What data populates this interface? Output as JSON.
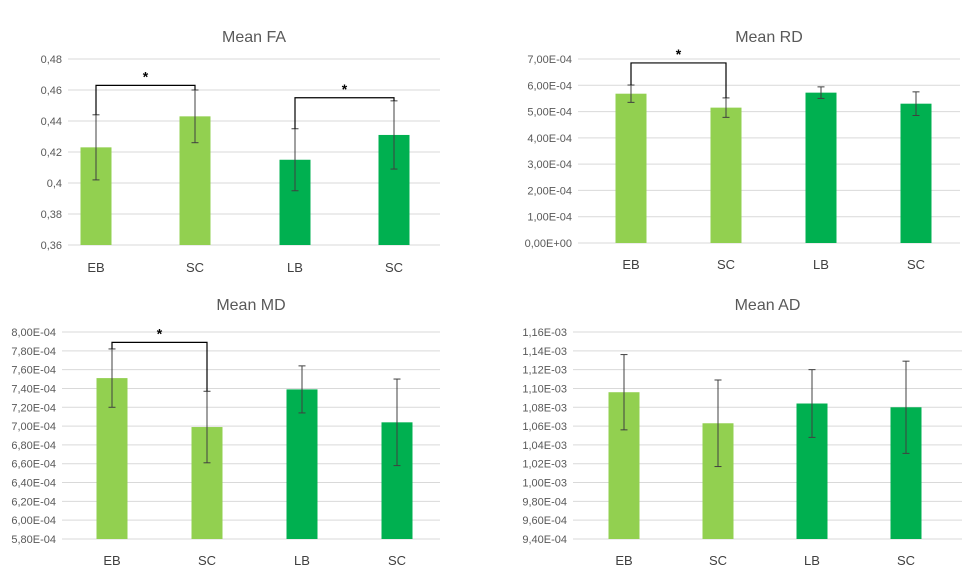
{
  "colors": {
    "light": "#92d050",
    "dark": "#00b050"
  },
  "chart_data": [
    {
      "type": "bar",
      "title": "Mean FA",
      "categories": [
        "EB",
        "SC",
        "LB",
        "SC"
      ],
      "values": [
        0.423,
        0.443,
        0.415,
        0.431
      ],
      "errors": [
        0.021,
        0.017,
        0.02,
        0.022
      ],
      "ylim": [
        0.36,
        0.48
      ],
      "yticks": [
        0.36,
        0.38,
        0.4,
        0.42,
        0.44,
        0.46,
        0.48
      ],
      "ytick_labels": [
        "0,36",
        "0,38",
        "0,4",
        "0,42",
        "0,44",
        "0,46",
        "0,48"
      ],
      "series_color": [
        "light",
        "light",
        "dark",
        "dark"
      ],
      "annotations": [
        {
          "from": 0,
          "to": 1,
          "level": 0.463,
          "text": "*"
        },
        {
          "from": 2,
          "to": 3,
          "level": 0.455,
          "text": "*"
        }
      ]
    },
    {
      "type": "bar",
      "title": "Mean RD",
      "categories": [
        "EB",
        "SC",
        "LB",
        "SC"
      ],
      "values": [
        0.000568,
        0.000515,
        0.000572,
        0.00053
      ],
      "errors": [
        3.3e-05,
        3.7e-05,
        2.2e-05,
        4.5e-05
      ],
      "ylim": [
        0,
        0.0007
      ],
      "yticks": [
        0,
        0.0001,
        0.0002,
        0.0003,
        0.0004,
        0.0005,
        0.0006,
        0.0007
      ],
      "ytick_labels": [
        "0,00E+00",
        "1,00E-04",
        "2,00E-04",
        "3,00E-04",
        "4,00E-04",
        "5,00E-04",
        "6,00E-04",
        "7,00E-04"
      ],
      "series_color": [
        "light",
        "light",
        "dark",
        "dark"
      ],
      "annotations": [
        {
          "from": 0,
          "to": 1,
          "level": 0.000685,
          "text": "*"
        }
      ]
    },
    {
      "type": "bar",
      "title": "Mean MD",
      "categories": [
        "EB",
        "SC",
        "LB",
        "SC"
      ],
      "values": [
        0.000751,
        0.000699,
        0.000739,
        0.000704
      ],
      "errors": [
        3.1e-05,
        3.8e-05,
        2.5e-05,
        4.6e-05
      ],
      "ylim": [
        0.00058,
        0.0008
      ],
      "yticks": [
        0.00058,
        0.0006,
        0.00062,
        0.00064,
        0.00066,
        0.00068,
        0.0007,
        0.00072,
        0.00074,
        0.00076,
        0.00078,
        0.0008
      ],
      "ytick_labels": [
        "5,80E-04",
        "6,00E-04",
        "6,20E-04",
        "6,40E-04",
        "6,60E-04",
        "6,80E-04",
        "7,00E-04",
        "7,20E-04",
        "7,40E-04",
        "7,60E-04",
        "7,80E-04",
        "8,00E-04"
      ],
      "series_color": [
        "light",
        "light",
        "dark",
        "dark"
      ],
      "annotations": [
        {
          "from": 0,
          "to": 1,
          "level": 0.000789,
          "text": "*"
        }
      ]
    },
    {
      "type": "bar",
      "title": "Mean AD",
      "categories": [
        "EB",
        "SC",
        "LB",
        "SC"
      ],
      "values": [
        0.001096,
        0.001063,
        0.001084,
        0.00108
      ],
      "errors": [
        4e-05,
        4.6e-05,
        3.6e-05,
        4.9e-05
      ],
      "ylim": [
        0.00094,
        0.00116
      ],
      "yticks": [
        0.00094,
        0.00096,
        0.00098,
        0.001,
        0.00102,
        0.00104,
        0.00106,
        0.00108,
        0.0011,
        0.00112,
        0.00114,
        0.00116
      ],
      "ytick_labels": [
        "9,40E-04",
        "9,60E-04",
        "9,80E-04",
        "1,00E-03",
        "1,02E-03",
        "1,04E-03",
        "1,06E-03",
        "1,08E-03",
        "1,10E-03",
        "1,12E-03",
        "1,14E-03",
        "1,16E-03"
      ],
      "series_color": [
        "light",
        "light",
        "dark",
        "dark"
      ],
      "annotations": []
    }
  ]
}
